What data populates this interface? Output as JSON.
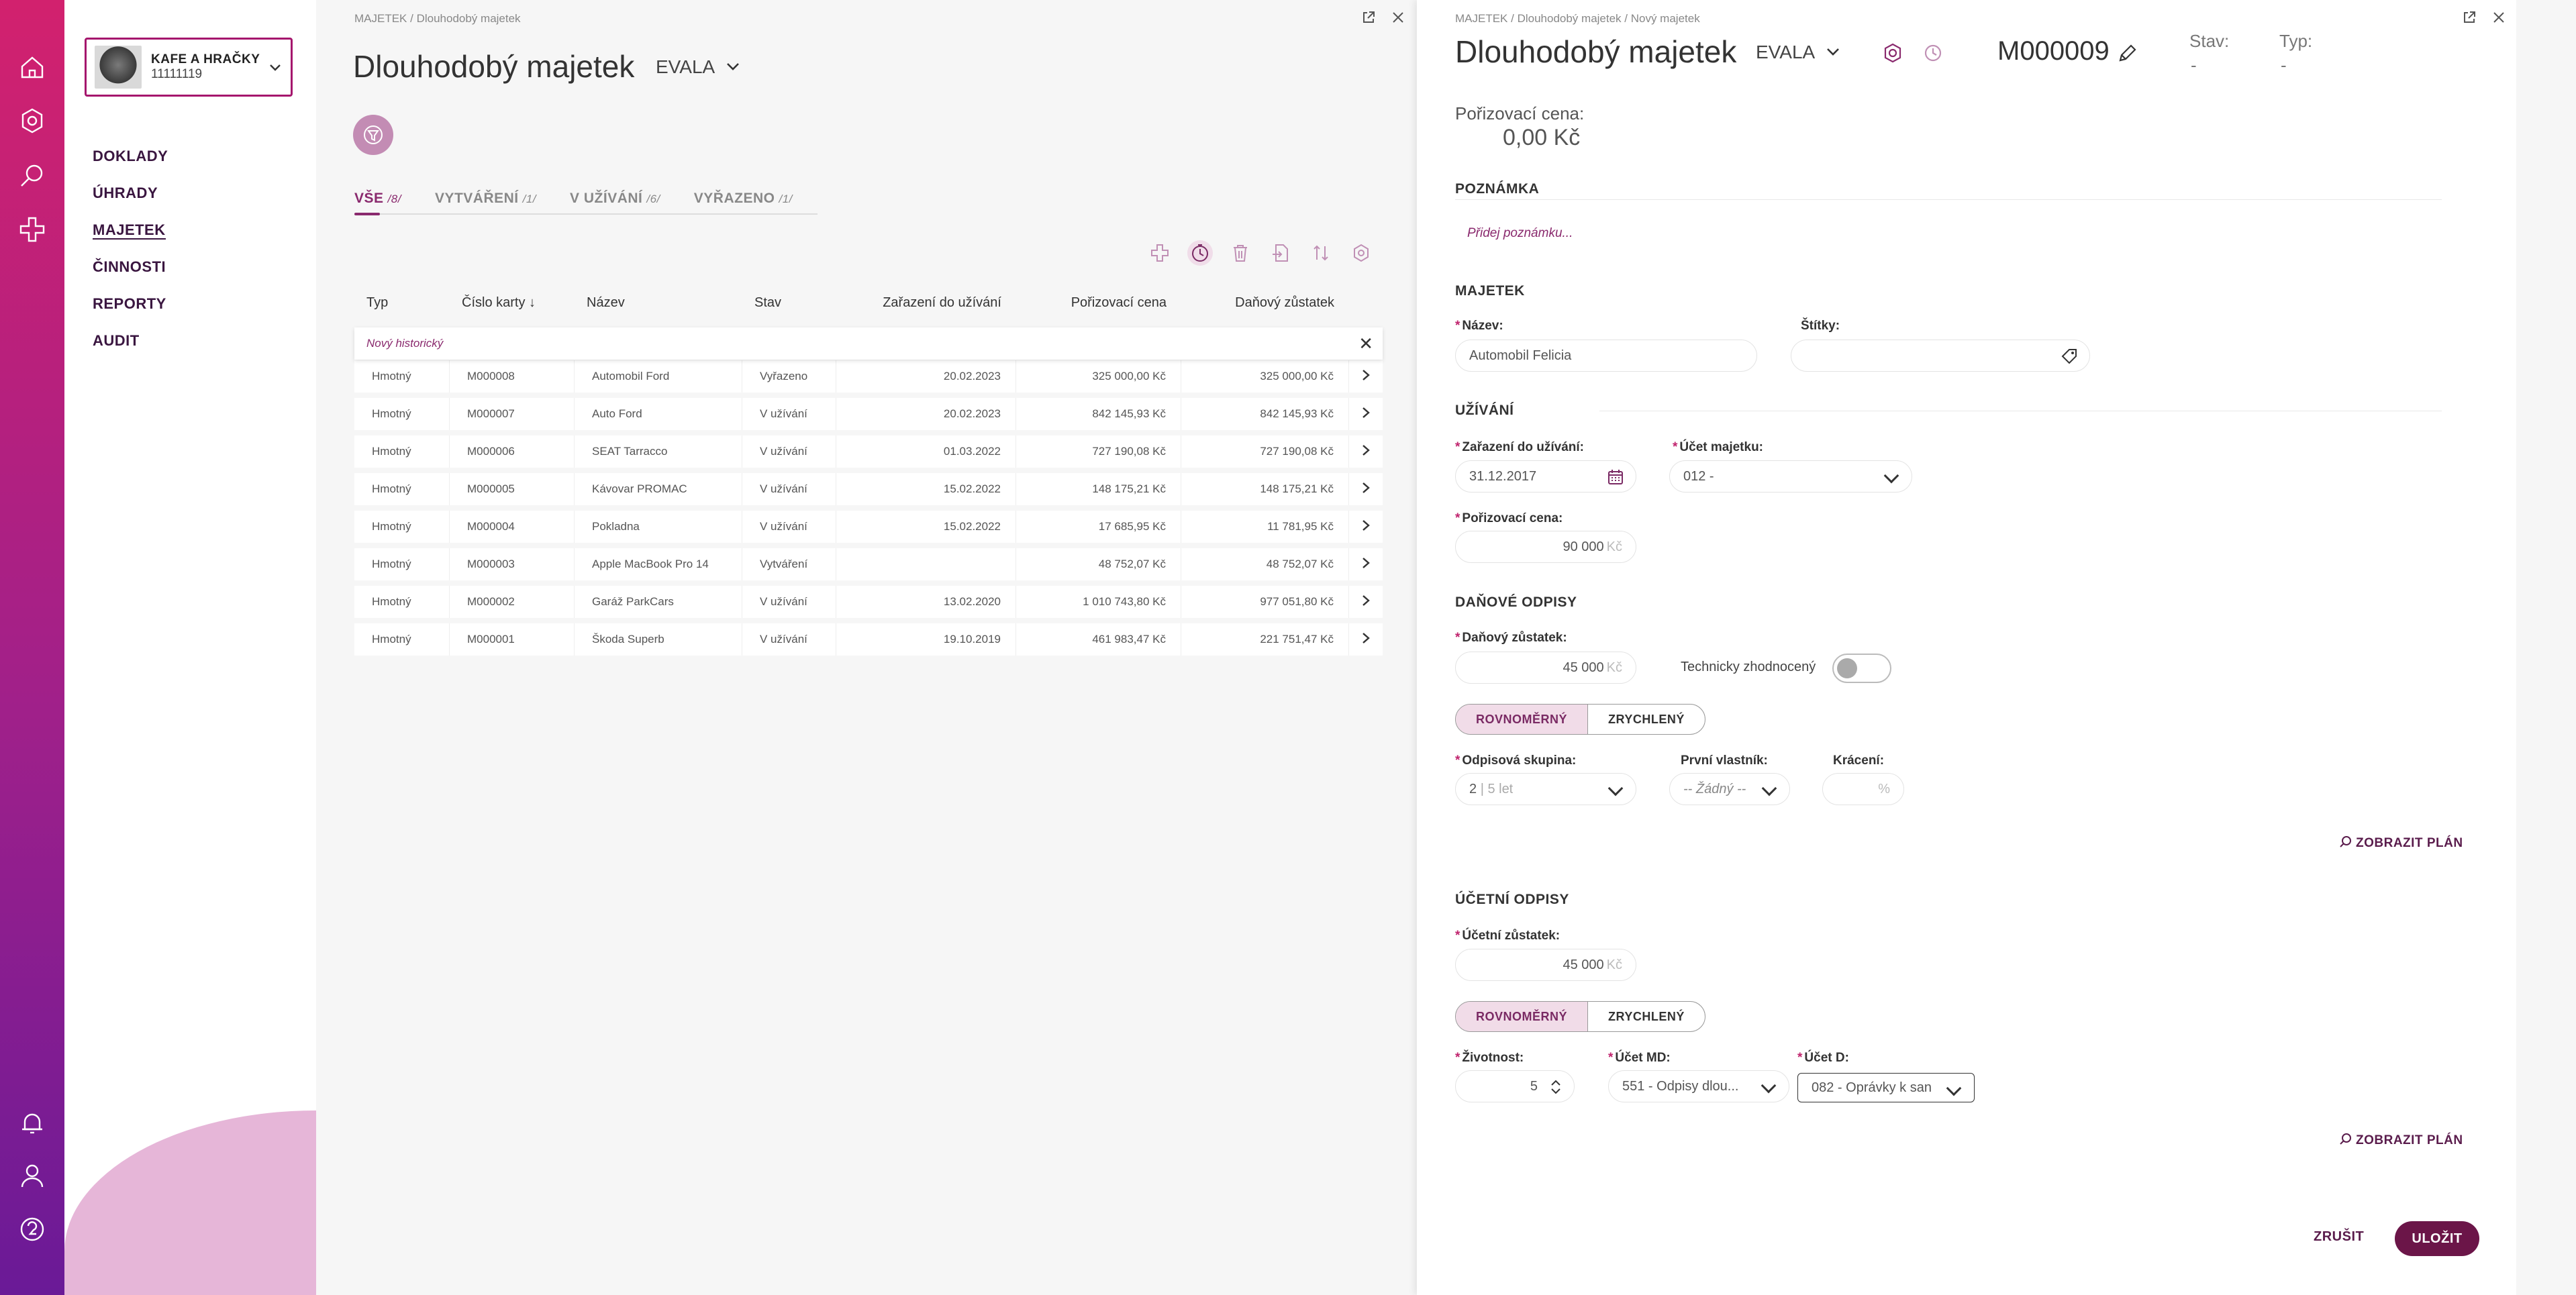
{
  "company": {
    "name": "KAFE A HRAČKY",
    "id": "11111119"
  },
  "nav": [
    "DOKLADY",
    "ÚHRADY",
    "MAJETEK",
    "ČINNOSTI",
    "REPORTY",
    "AUDIT"
  ],
  "left": {
    "breadcrumb": "MAJETEK  /  Dlouhodobý majetek",
    "title": "Dlouhodobý majetek",
    "subtitle": "EVALA",
    "tabs": [
      {
        "label": "VŠE",
        "count": "/8/"
      },
      {
        "label": "VYTVÁŘENÍ",
        "count": "/1/"
      },
      {
        "label": "V UŽÍVÁNÍ",
        "count": "/6/"
      },
      {
        "label": "VYŘAZENO",
        "count": "/1/"
      }
    ],
    "columns": [
      "Typ",
      "Číslo karty ↓",
      "Název",
      "Stav",
      "Zařazení do užívání",
      "Pořizovací cena",
      "Daňový zůstatek"
    ],
    "new_row": "Nový historický",
    "rows": [
      {
        "typ": "Hmotný",
        "cislo": "M000008",
        "nazev": "Automobil Ford",
        "stav": "Vyřazeno",
        "stav_class": "st-vyrazeno",
        "zarazeni": "20.02.2023",
        "cena": "325 000,00 Kč",
        "zustatek": "325 000,00 Kč"
      },
      {
        "typ": "Hmotný",
        "cislo": "M000007",
        "nazev": "Auto Ford",
        "stav": "V užívání",
        "stav_class": "st-uzivani",
        "zarazeni": "20.02.2023",
        "cena": "842 145,93 Kč",
        "zustatek": "842 145,93 Kč"
      },
      {
        "typ": "Hmotný",
        "cislo": "M000006",
        "nazev": "SEAT Tarracco",
        "stav": "V užívání",
        "stav_class": "st-uzivani",
        "zarazeni": "01.03.2022",
        "cena": "727 190,08 Kč",
        "zustatek": "727 190,08 Kč"
      },
      {
        "typ": "Hmotný",
        "cislo": "M000005",
        "nazev": "Kávovar PROMAC",
        "stav": "V užívání",
        "stav_class": "st-uzivani",
        "zarazeni": "15.02.2022",
        "cena": "148 175,21 Kč",
        "zustatek": "148 175,21 Kč"
      },
      {
        "typ": "Hmotný",
        "cislo": "M000004",
        "nazev": "Pokladna",
        "stav": "V užívání",
        "stav_class": "st-uzivani",
        "zarazeni": "15.02.2022",
        "cena": "17 685,95 Kč",
        "zustatek": "11 781,95 Kč"
      },
      {
        "typ": "Hmotný",
        "cislo": "M000003",
        "nazev": "Apple MacBook Pro 14",
        "stav": "Vytváření",
        "stav_class": "st-vytvareni",
        "zarazeni": "",
        "cena": "48 752,07 Kč",
        "zustatek": "48 752,07 Kč"
      },
      {
        "typ": "Hmotný",
        "cislo": "M000002",
        "nazev": "Garáž ParkCars",
        "stav": "V užívání",
        "stav_class": "st-uzivani",
        "zarazeni": "13.02.2020",
        "cena": "1 010 743,80 Kč",
        "zustatek": "977 051,80 Kč"
      },
      {
        "typ": "Hmotný",
        "cislo": "M000001",
        "nazev": "Škoda Superb",
        "stav": "V užívání",
        "stav_class": "st-uzivani",
        "zarazeni": "19.10.2019",
        "cena": "461 983,47 Kč",
        "zustatek": "221 751,47 Kč"
      }
    ]
  },
  "right": {
    "breadcrumb": "MAJETEK  /  Dlouhodobý majetek  /  Nový majetek",
    "title": "Dlouhodobý majetek",
    "subtitle": "EVALA",
    "card_number": "M000009",
    "stav_label": "Stav:",
    "stav_value": "-",
    "typ_label": "Typ:",
    "typ_value": "-",
    "price_label": "Pořizovací cena:",
    "price_value": "0,00 Kč",
    "sections": {
      "note": "POZNÁMKA",
      "asset": "MAJETEK",
      "usage": "UŽÍVÁNÍ",
      "tax": "DAŇOVÉ ODPISY",
      "accounting": "ÚČETNÍ ODPISY"
    },
    "note_placeholder": "Přidej poznámku...",
    "fields": {
      "nazev_label": "Název:",
      "nazev_value": "Automobil Felicia",
      "stitky_label": "Štítky:",
      "zarazeni_label": "Zařazení do užívání:",
      "zarazeni_value": "31.12.2017",
      "ucet_label": "Účet majetku:",
      "ucet_value": "012 -",
      "cena_label": "Pořizovací cena:",
      "cena_value": "90 000",
      "dan_zust_label": "Daňový zůstatek:",
      "dan_zust_value": "45 000",
      "tech_label": "Technicky zhodnocený",
      "seg_a": "ROVNOMĚRNÝ",
      "seg_b": "ZRYCHLENÝ",
      "skupina_label": "Odpisová skupina:",
      "skupina_value": "2",
      "skupina_hint": "| 5 let",
      "vlastnik_label": "První vlastník:",
      "vlastnik_value": "-- Žádný --",
      "kraceni_label": "Krácení:",
      "kraceni_unit": "%",
      "plan": "ZOBRAZIT PLÁN",
      "uc_zust_label": "Účetní zůstatek:",
      "uc_zust_value": "45 000",
      "zivotnost_label": "Životnost:",
      "zivotnost_value": "5",
      "md_label": "Účet MD:",
      "md_value": "551 - Odpisy dlou...",
      "d_label": "Účet D:",
      "d_value": "082 - Oprávky k san",
      "currency": "Kč"
    },
    "cancel": "ZRUŠIT",
    "save": "ULOŽIT"
  }
}
